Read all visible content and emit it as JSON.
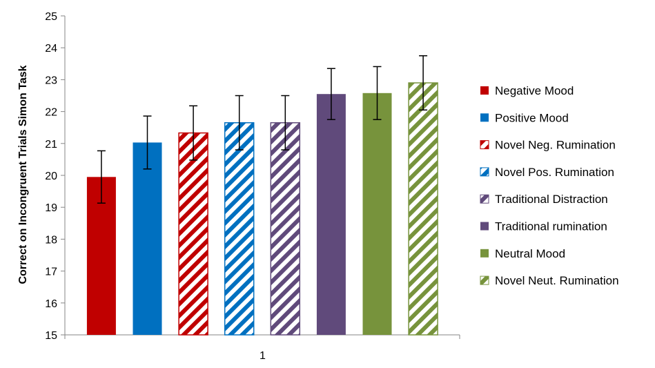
{
  "chart_data": {
    "type": "bar",
    "categories": [
      "1"
    ],
    "ylabel": "Correct on Incongruent Trials Simon Task",
    "xlabel": "",
    "ylim": [
      15,
      25
    ],
    "yticks": [
      15,
      16,
      17,
      18,
      19,
      20,
      21,
      22,
      23,
      24,
      25
    ],
    "grid": false,
    "legend_position": "right",
    "series": [
      {
        "name": "Negative Mood",
        "values": [
          19.95
        ],
        "error": [
          0.82
        ],
        "color": "#c00000",
        "pattern": "solid"
      },
      {
        "name": "Positive Mood",
        "values": [
          21.03
        ],
        "error": [
          0.83
        ],
        "color": "#0070c0",
        "pattern": "solid"
      },
      {
        "name": "Novel Neg. Rumination",
        "values": [
          21.33
        ],
        "error": [
          0.85
        ],
        "color": "#c00000",
        "pattern": "hatched"
      },
      {
        "name": "Novel Pos. Rumination",
        "values": [
          21.65
        ],
        "error": [
          0.85
        ],
        "color": "#0070c0",
        "pattern": "hatched"
      },
      {
        "name": "Traditional Distraction",
        "values": [
          21.65
        ],
        "error": [
          0.85
        ],
        "color": "#604a7b",
        "pattern": "hatched"
      },
      {
        "name": "Traditional rumination",
        "values": [
          22.55
        ],
        "error": [
          0.8
        ],
        "color": "#604a7b",
        "pattern": "solid"
      },
      {
        "name": "Neutral Mood",
        "values": [
          22.58
        ],
        "error": [
          0.83
        ],
        "color": "#77933c",
        "pattern": "solid"
      },
      {
        "name": "Novel Neut. Rumination",
        "values": [
          22.9
        ],
        "error": [
          0.85
        ],
        "color": "#77933c",
        "pattern": "hatched"
      }
    ]
  }
}
